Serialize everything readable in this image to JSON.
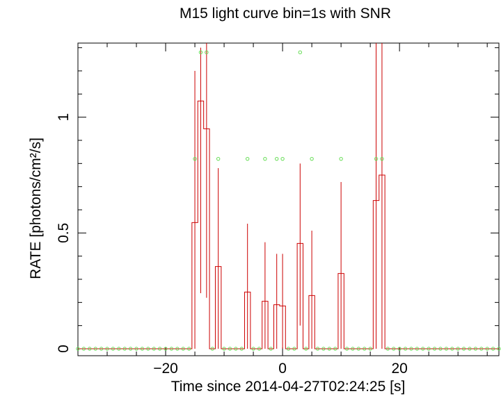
{
  "chart_data": {
    "type": "line",
    "title": "M15 light curve bin=1s with SNR",
    "xlabel": "Time since 2014-04-27T02:24:25 [s]",
    "ylabel": "RATE [photons/cm²/s]",
    "xlim": [
      -35,
      37
    ],
    "ylim": [
      -0.03,
      1.32
    ],
    "x_ticks": [
      -20,
      0,
      20
    ],
    "x_tick_labels": [
      "−20",
      "0",
      "20"
    ],
    "y_ticks": [
      0,
      0.5,
      1
    ],
    "y_tick_labels": [
      "0",
      "0.5",
      "1"
    ],
    "grid": false,
    "series": [
      {
        "style": "step-with-errorbars",
        "color": "#cc0000",
        "x": [
          -15,
          -14,
          -13,
          -11,
          -6,
          -3,
          -1,
          0,
          3,
          5,
          10,
          16,
          17
        ],
        "values": [
          0.545,
          1.07,
          0.95,
          0.355,
          0.245,
          0.205,
          0.19,
          0.185,
          0.455,
          0.23,
          0.325,
          0.64,
          0.75
        ],
        "err_low": [
          0.0,
          0.24,
          0.22,
          0.0,
          0.0,
          0.0,
          0.0,
          0.0,
          0.1,
          0.0,
          0.0,
          0.0,
          0.0
        ],
        "err_high": [
          1.2,
          1.3,
          1.32,
          0.78,
          0.54,
          0.46,
          0.41,
          0.41,
          0.8,
          0.51,
          0.72,
          1.32,
          1.32
        ]
      },
      {
        "style": "markers",
        "color": "#66dd55",
        "x": [
          -15,
          -14,
          -13,
          -11,
          -6,
          -3,
          -1,
          0,
          3,
          5,
          10,
          16,
          17
        ],
        "values": [
          0.82,
          1.28,
          1.28,
          0.82,
          0.82,
          0.82,
          0.82,
          0.82,
          1.28,
          0.82,
          0.82,
          0.82,
          0.82
        ],
        "baseline_value": 0
      }
    ]
  }
}
